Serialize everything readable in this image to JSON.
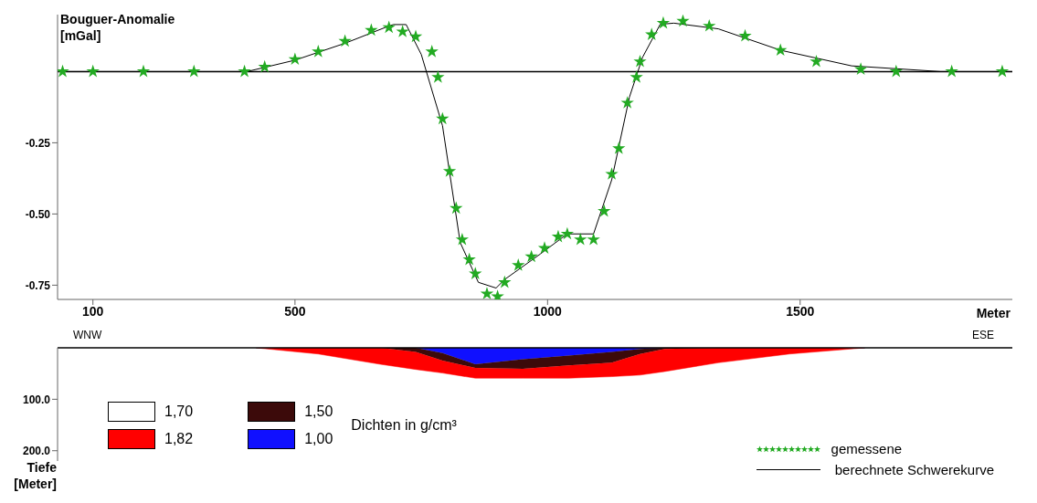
{
  "chart_data": [
    {
      "type": "line",
      "ylabel": "Bouguer-Anomalie\n[mGal]",
      "xlabel": "Meter",
      "xlim": [
        30,
        1920
      ],
      "xticks": [
        100,
        500,
        1000,
        1500
      ],
      "ylim": [
        -0.8,
        0.2
      ],
      "yticks": [
        -0.25,
        {
          "value": -0.5,
          "label": "-0.50"
        },
        -0.75
      ],
      "ref_lines": [
        {
          "axis": "y",
          "value": 0,
          "color": "#000000"
        }
      ],
      "legend": "bottom right",
      "line_style": "solid",
      "series": [
        {
          "name": "gemessene",
          "type": "scatter",
          "marker": "star",
          "color": "#22aa22",
          "x": [
            40,
            100,
            200,
            300,
            400,
            440,
            500,
            546,
            599,
            651,
            686,
            713,
            739,
            771,
            783,
            792,
            806,
            819,
            831,
            845,
            857,
            880,
            901,
            915,
            942,
            968,
            994,
            1021,
            1039,
            1065,
            1091,
            1112,
            1127,
            1141,
            1158,
            1176,
            1183,
            1206,
            1229,
            1268,
            1320,
            1391,
            1461,
            1532,
            1620,
            1690,
            1800,
            1900
          ],
          "values": [
            0,
            0,
            0,
            0,
            0,
            0.016,
            0.043,
            0.07,
            0.107,
            0.145,
            0.155,
            0.14,
            0.123,
            0.07,
            -0.02,
            -0.166,
            -0.35,
            -0.48,
            -0.59,
            -0.66,
            -0.71,
            -0.78,
            -0.79,
            -0.74,
            -0.68,
            -0.65,
            -0.62,
            -0.58,
            -0.57,
            -0.59,
            -0.59,
            -0.49,
            -0.36,
            -0.27,
            -0.11,
            -0.02,
            0.035,
            0.13,
            0.17,
            0.177,
            0.16,
            0.125,
            0.075,
            0.035,
            0.008,
            0,
            0,
            0
          ]
        },
        {
          "name": " berechnete Schwerekurve",
          "type": "line",
          "marker": "none",
          "color": "#000000",
          "x": [
            30,
            405,
            500,
            600,
            686,
            695,
            720,
            750,
            792,
            827,
            863,
            898,
            915,
            986,
            1039,
            1091,
            1127,
            1162,
            1188,
            1223,
            1250,
            1338,
            1461,
            1602,
            1778,
            1920
          ],
          "values": [
            0,
            0,
            0.04,
            0.1,
            0.16,
            0.165,
            0.165,
            0.06,
            -0.19,
            -0.6,
            -0.74,
            -0.76,
            -0.73,
            -0.64,
            -0.57,
            -0.57,
            -0.38,
            -0.09,
            0.05,
            0.166,
            0.17,
            0.15,
            0.075,
            0.02,
            0,
            0
          ]
        }
      ]
    },
    {
      "type": "area",
      "stacked": true,
      "ylabel": "Tiefe\n[Meter]",
      "legend_title": "Dichten in g/cm³",
      "legend": "bottom left",
      "annotations": [
        "WNW",
        "ESE"
      ],
      "tick_labels": "y",
      "xlim": [
        30,
        1920
      ],
      "ylim": [
        220,
        0
      ],
      "yticks": [
        {
          "value": 100,
          "label": "100.0"
        },
        {
          "value": 200,
          "label": "200.0"
        }
      ],
      "x": [
        423,
        546,
        669,
        739,
        792,
        857,
        951,
        1042,
        1127,
        1183,
        1232,
        1338,
        1479,
        1628
      ],
      "series": [
        {
          "name": "1,00",
          "color": "#1010ff",
          "values": [
            0,
            0,
            0,
            0,
            10,
            32,
            22,
            15,
            8,
            2,
            0,
            0,
            0,
            0
          ]
        },
        {
          "name": "1,50",
          "color": "#3c0a0a",
          "values": [
            0,
            0,
            0,
            8,
            15,
            7,
            19,
            19,
            21,
            10,
            2,
            0,
            0,
            0
          ]
        },
        {
          "name": "1,82",
          "color": "#ff0000",
          "values": [
            0,
            12,
            32,
            34,
            24,
            20,
            18,
            25,
            27,
            41,
            44,
            29,
            12,
            0
          ]
        },
        {
          "name": "1,70",
          "color": "#ffffff",
          "values": [
            null,
            null,
            null,
            null,
            null,
            null,
            null,
            null,
            null,
            null,
            null,
            null,
            null,
            null
          ]
        }
      ]
    }
  ]
}
